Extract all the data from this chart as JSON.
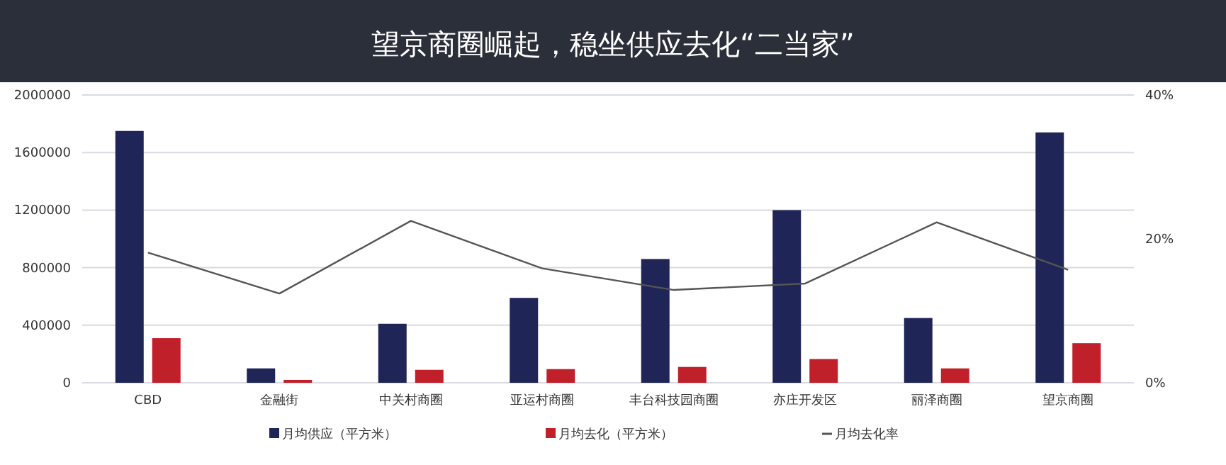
{
  "chart_data": {
    "type": "bar",
    "title": "望京商圈崛起，稳坐供应去化“二当家”",
    "categories": [
      "CBD",
      "金融街",
      "中关村商圈",
      "亚运村商圈",
      "丰台科技园商圈",
      "亦庄开发区",
      "丽泽商圈",
      "望京商圈"
    ],
    "series": [
      {
        "name": "月均供应（平方米）",
        "color": "#1f2556",
        "values": [
          1750000,
          100000,
          410000,
          590000,
          860000,
          1200000,
          450000,
          1740000
        ]
      },
      {
        "name": "月均去化（平方米）",
        "color": "#c0202a",
        "values": [
          310000,
          20000,
          90000,
          95000,
          110000,
          165000,
          100000,
          275000
        ]
      },
      {
        "name": "月均去化率",
        "type": "line",
        "axis": "y2",
        "color": "#555555",
        "values": [
          18.1,
          12.4,
          22.5,
          15.9,
          12.9,
          13.8,
          22.3,
          15.7
        ]
      }
    ],
    "ylim": [
      0,
      2000000
    ],
    "yticks": [
      0,
      400000,
      800000,
      1200000,
      1600000,
      2000000
    ],
    "y2lim": [
      0,
      40
    ],
    "y2ticks": [
      {
        "value": 0,
        "label": "0%"
      },
      {
        "value": 20,
        "label": "20%"
      },
      {
        "value": 40,
        "label": "40%"
      }
    ],
    "grid": "y",
    "legend": "bottom"
  }
}
